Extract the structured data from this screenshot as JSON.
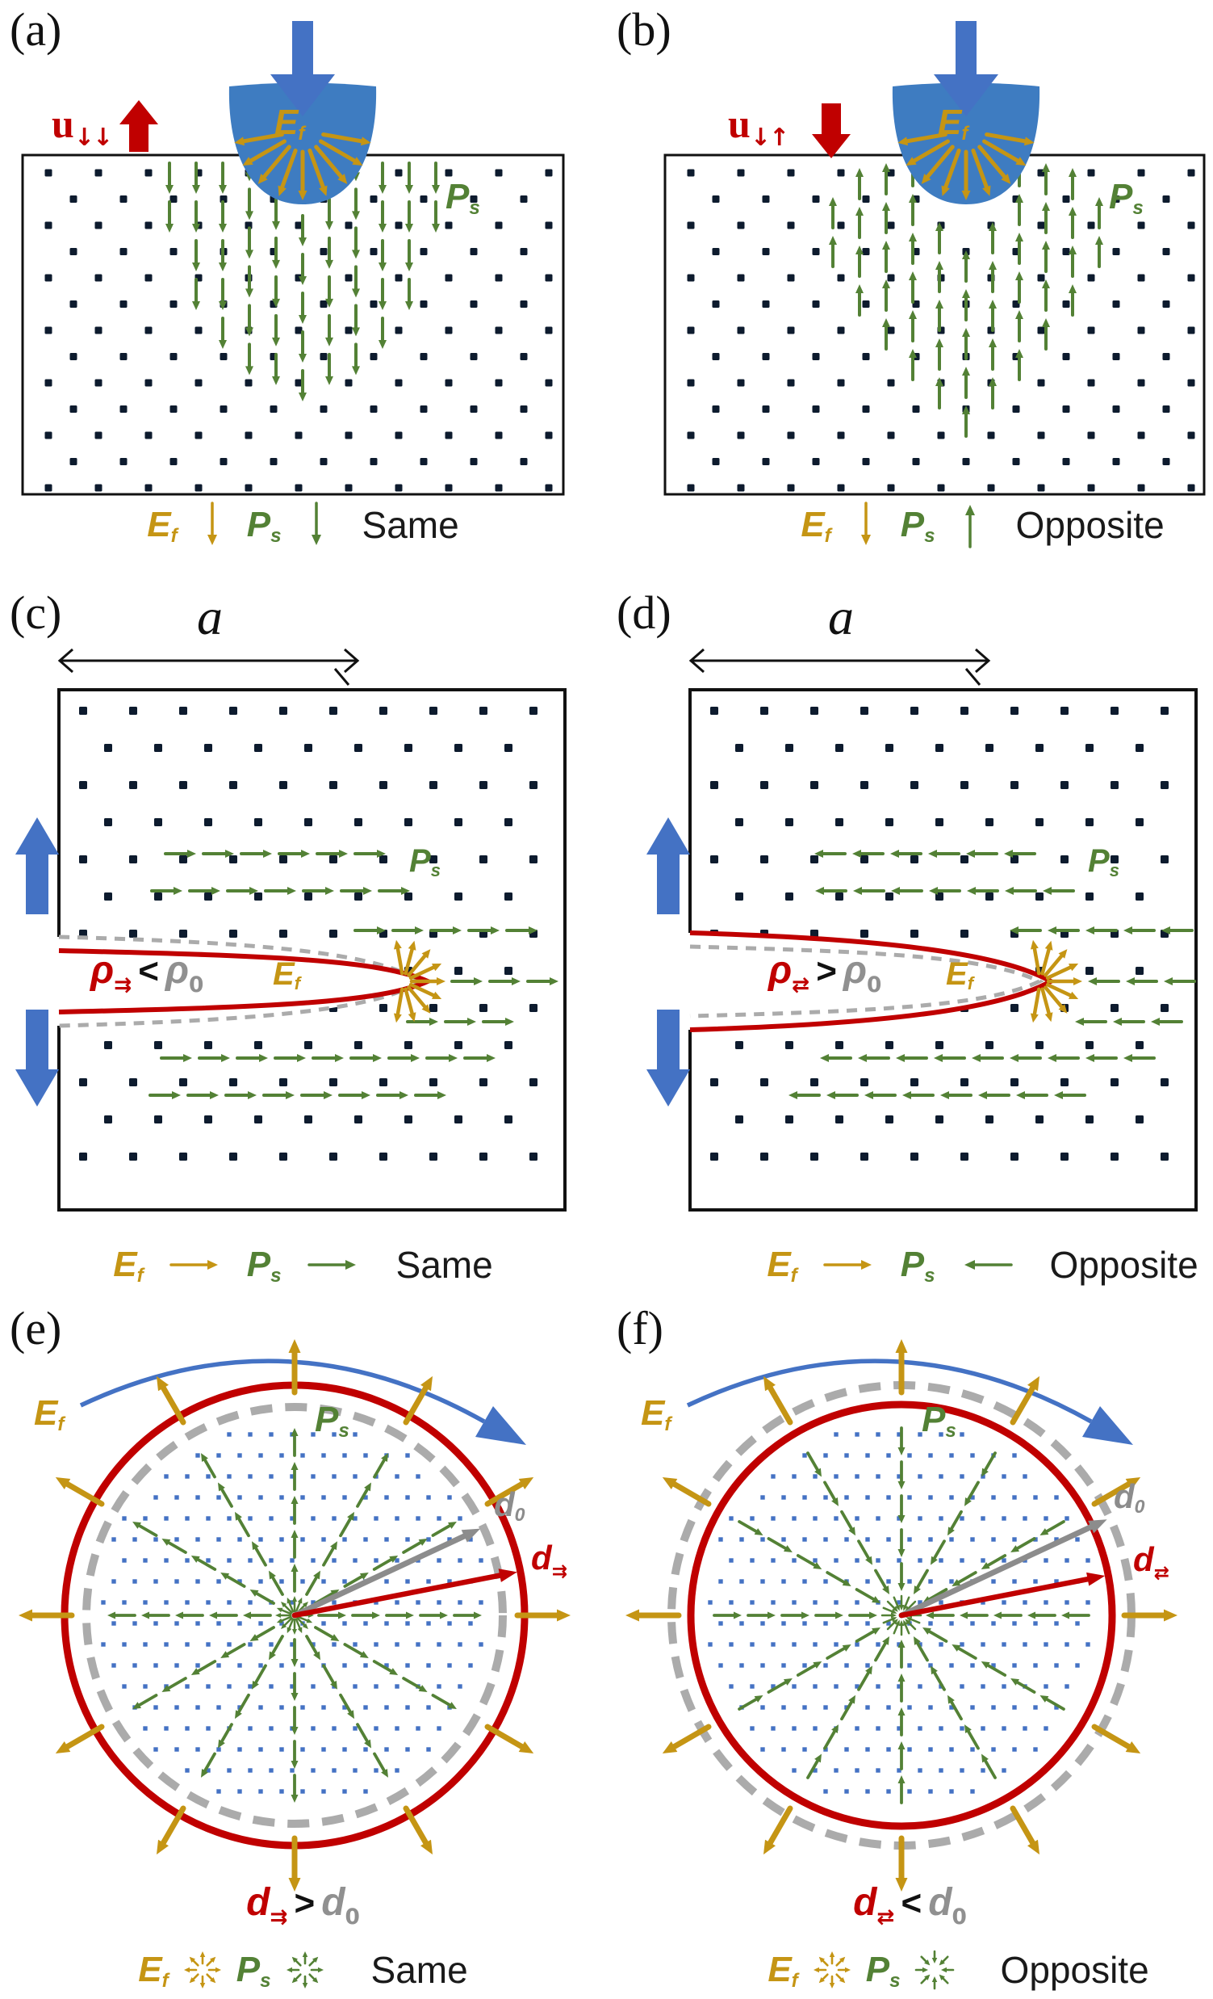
{
  "figure_name": "flexoelectric-polarization-schematic",
  "colors": {
    "gold": "#C59514",
    "green": "#538135",
    "red": "#C00000",
    "blue": "#4472C4",
    "indenter_blue": "#3E7CC1",
    "navy_dot": "#0D1B2E",
    "blue_dot": "#4472C4",
    "gray_dashed": "#ABABAB",
    "gray_label": "#8C8C8C",
    "black": "#1A1A1A"
  },
  "panels": {
    "a": {
      "letter": "(a)",
      "u": {
        "base": "u",
        "sub": "↓↓",
        "arrow": "up"
      },
      "ef": {
        "base": "E",
        "sub": "f"
      },
      "ps": {
        "base": "P",
        "sub": "s"
      },
      "ps_dir": "down",
      "legend": {
        "ef": {
          "base": "E",
          "sub": "f"
        },
        "ef_dir": "down",
        "ps": {
          "base": "P",
          "sub": "s"
        },
        "ps_dir": "down",
        "relation": "Same"
      }
    },
    "b": {
      "letter": "(b)",
      "u": {
        "base": "u",
        "sub": "↓↑",
        "arrow": "down"
      },
      "ef": {
        "base": "E",
        "sub": "f"
      },
      "ps": {
        "base": "P",
        "sub": "s"
      },
      "ps_dir": "up",
      "legend": {
        "ef": {
          "base": "E",
          "sub": "f"
        },
        "ef_dir": "down",
        "ps": {
          "base": "P",
          "sub": "s"
        },
        "ps_dir": "up",
        "relation": "Opposite"
      }
    },
    "c": {
      "letter": "(c)",
      "dim": "a",
      "rho": {
        "lhs": "ρ",
        "lhs_sub": "⇉",
        "op": "<",
        "rhs": "ρ",
        "rhs_sub": "0"
      },
      "ef": {
        "base": "E",
        "sub": "f"
      },
      "ps": {
        "base": "P",
        "sub": "s"
      },
      "ps_dir": "right",
      "crack": "sharp",
      "legend": {
        "ef": {
          "base": "E",
          "sub": "f"
        },
        "ef_dir": "right",
        "ps": {
          "base": "P",
          "sub": "s"
        },
        "ps_dir": "right",
        "relation": "Same"
      }
    },
    "d": {
      "letter": "(d)",
      "dim": "a",
      "rho": {
        "lhs": "ρ",
        "lhs_sub": "⇄",
        "op": ">",
        "rhs": "ρ",
        "rhs_sub": "0"
      },
      "ef": {
        "base": "E",
        "sub": "f"
      },
      "ps": {
        "base": "P",
        "sub": "s"
      },
      "ps_dir": "left",
      "crack": "blunt",
      "legend": {
        "ef": {
          "base": "E",
          "sub": "f"
        },
        "ef_dir": "right",
        "ps": {
          "base": "P",
          "sub": "s"
        },
        "ps_dir": "left",
        "relation": "Opposite"
      }
    },
    "e": {
      "letter": "(e)",
      "ef": {
        "base": "E",
        "sub": "f"
      },
      "ps": {
        "base": "P",
        "sub": "s"
      },
      "d0": {
        "base": "d",
        "sub": "0"
      },
      "d": {
        "base": "d",
        "sub": "⇉"
      },
      "rel": {
        "lhs": "d",
        "lhs_sub": "⇉",
        "op": ">",
        "rhs": "d",
        "rhs_sub": "0"
      },
      "ps_dir": "out",
      "mode": "expand",
      "legend": {
        "ef": {
          "base": "E",
          "sub": "f"
        },
        "ef_icon": "out",
        "ps": {
          "base": "P",
          "sub": "s"
        },
        "ps_icon": "out",
        "relation": "Same"
      }
    },
    "f": {
      "letter": "(f)",
      "ef": {
        "base": "E",
        "sub": "f"
      },
      "ps": {
        "base": "P",
        "sub": "s"
      },
      "d0": {
        "base": "d",
        "sub": "0"
      },
      "d": {
        "base": "d",
        "sub": "⇄"
      },
      "rel": {
        "lhs": "d",
        "lhs_sub": "⇄",
        "op": "<",
        "rhs": "d",
        "rhs_sub": "0"
      },
      "ps_dir": "in",
      "mode": "contract",
      "legend": {
        "ef": {
          "base": "E",
          "sub": "f"
        },
        "ef_icon": "out",
        "ps": {
          "base": "P",
          "sub": "s"
        },
        "ps_icon": "in",
        "relation": "Opposite"
      }
    }
  }
}
